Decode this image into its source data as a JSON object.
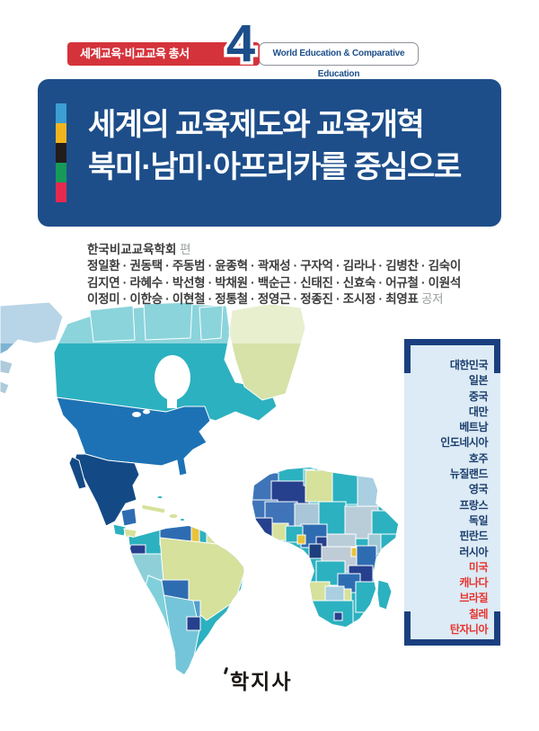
{
  "banner": {
    "series_label": "세계교육·비교교육 총서",
    "series_number": "4",
    "series_english": "World Education & Comparative Education"
  },
  "title": {
    "line1": "세계의 교육제도와 교육개혁",
    "line2": "북미·남미·아프리카를 중심으로",
    "stripe_colors": [
      "#3b9fd4",
      "#f0b41e",
      "#221d1a",
      "#169a5a",
      "#e62a4f"
    ]
  },
  "authors": {
    "editor": "한국비교교육학회",
    "editor_role": "편",
    "separator": " · ",
    "lines": [
      [
        "정일환",
        "권동택",
        "주동범",
        "윤종혁",
        "곽재성",
        "구자억",
        "김라나",
        "김병찬",
        "김숙이"
      ],
      [
        "김지연",
        "라혜수",
        "박선형",
        "박채원",
        "백순근",
        "신태진",
        "신효숙",
        "어규철",
        "이원석"
      ],
      [
        "이정미",
        "이한승",
        "이현철",
        "정통철",
        "정영근",
        "정종진",
        "조시정",
        "최영표"
      ]
    ],
    "coauthor_suffix": "공저"
  },
  "countries": {
    "items": [
      {
        "label": "대한민국",
        "highlight": false
      },
      {
        "label": "일본",
        "highlight": false
      },
      {
        "label": "중국",
        "highlight": false
      },
      {
        "label": "대만",
        "highlight": false
      },
      {
        "label": "베트남",
        "highlight": false
      },
      {
        "label": "인도네시아",
        "highlight": false
      },
      {
        "label": "호주",
        "highlight": false
      },
      {
        "label": "뉴질랜드",
        "highlight": false
      },
      {
        "label": "영국",
        "highlight": false
      },
      {
        "label": "프랑스",
        "highlight": false
      },
      {
        "label": "독일",
        "highlight": false
      },
      {
        "label": "핀란드",
        "highlight": false
      },
      {
        "label": "러시아",
        "highlight": false
      },
      {
        "label": "미국",
        "highlight": true
      },
      {
        "label": "캐나다",
        "highlight": true
      },
      {
        "label": "브라질",
        "highlight": true
      },
      {
        "label": "칠레",
        "highlight": true
      },
      {
        "label": "탄자니아",
        "highlight": true
      }
    ]
  },
  "publisher": {
    "logo": "학지사"
  },
  "colors": {
    "accent_red": "#d5333b",
    "navy": "#1d4e8a",
    "panel_bg": "#dcebf5",
    "panel_border": "#1b3f7e",
    "country_text": "#1c3e6e",
    "country_highlight": "#e8332f",
    "map_palette": [
      "#2cb1c0",
      "#1d72b5",
      "#134a86",
      "#d6e19b",
      "#27408e",
      "#3f74b8",
      "#a9cfe0",
      "#b9cdd9",
      "#7fd0da",
      "#74c5d9",
      "#e8c33c",
      "#2ea06a"
    ]
  }
}
